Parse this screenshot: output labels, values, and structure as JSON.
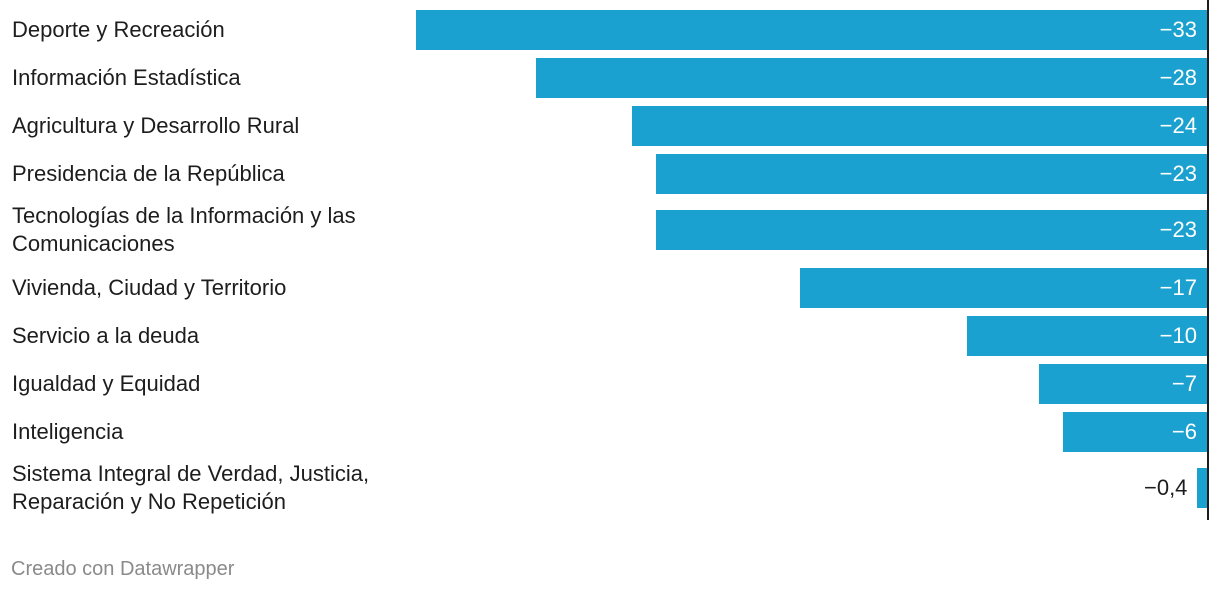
{
  "chart_data": {
    "type": "bar",
    "orientation": "horizontal",
    "categories": [
      "Deporte y Recreación",
      "Información Estadística",
      "Agricultura y Desarrollo Rural",
      "Presidencia de la República",
      "Tecnologías de la Información y las Comunicaciones",
      "Vivienda, Ciudad y Territorio",
      "Servicio a la deuda",
      "Igualdad y Equidad",
      "Inteligencia",
      "Sistema Integral de Verdad, Justicia, Reparación y No Repetición"
    ],
    "values": [
      -33,
      -28,
      -24,
      -23,
      -23,
      -17,
      -10,
      -7,
      -6,
      -0.4
    ],
    "value_labels": [
      "−33",
      "−28",
      "−24",
      "−23",
      "−23",
      "−17",
      "−10",
      "−7",
      "−6",
      "−0,4"
    ],
    "xlim": [
      -33,
      0
    ],
    "bar_color": "#1ba1cf",
    "grid": false
  },
  "footer": {
    "credit": "Creado con Datawrapper"
  }
}
